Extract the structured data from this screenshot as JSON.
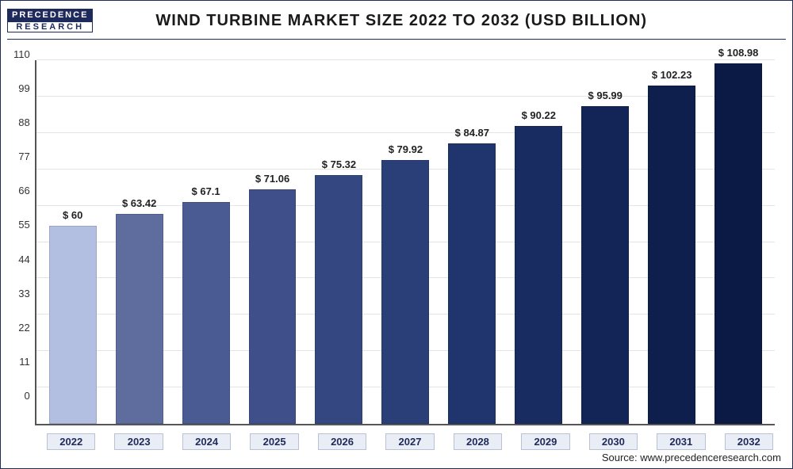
{
  "logo": {
    "top": "PRECEDENCE",
    "bottom": "RESEARCH"
  },
  "title": "WIND TURBINE MARKET SIZE 2022 TO 2032 (USD BILLION)",
  "source": "Source: www.precedenceresearch.com",
  "chart": {
    "type": "bar",
    "background_color": "#ffffff",
    "grid_color": "#e4e4e4",
    "axis_color": "#555555",
    "ylim": [
      0,
      110
    ],
    "ytick_step": 11,
    "label_fontsize": 13,
    "title_fontsize": 20,
    "bar_width": 1.0,
    "categories": [
      "2022",
      "2023",
      "2024",
      "2025",
      "2026",
      "2027",
      "2028",
      "2029",
      "2030",
      "2031",
      "2032"
    ],
    "values": [
      60,
      63.42,
      67.1,
      71.06,
      75.32,
      79.92,
      84.87,
      90.22,
      95.99,
      102.23,
      108.98
    ],
    "value_labels": [
      "$ 60",
      "$ 63.42",
      "$ 67.1",
      "$ 71.06",
      "$ 75.32",
      "$ 79.92",
      "$ 84.87",
      "$ 90.22",
      "$ 95.99",
      "$ 102.23",
      "$ 108.98"
    ],
    "bar_colors": [
      "#b3bfe0",
      "#5e6d9e",
      "#4a5a92",
      "#3f4f8a",
      "#344781",
      "#2a3e78",
      "#20346d",
      "#192c62",
      "#132557",
      "#0e1f4d",
      "#0a1a45"
    ],
    "xaxis_box_bg": "#e9edf5",
    "xaxis_box_border": "#b9c1d6",
    "xaxis_text_color": "#1f2a5c"
  }
}
